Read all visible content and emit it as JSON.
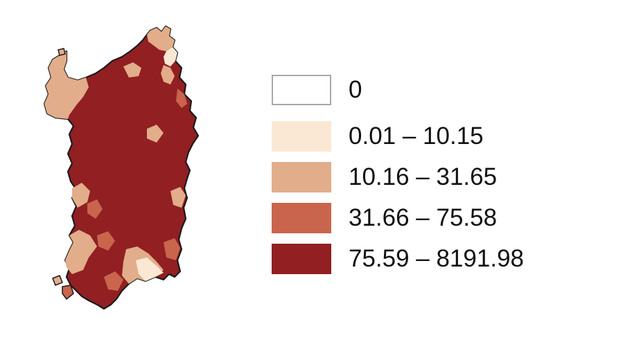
{
  "legend": {
    "items": [
      {
        "label": "0",
        "color": "#ffffff",
        "border": "#a8a8a8"
      },
      {
        "label": "0.01 – 10.15",
        "color": "#fbe8d4"
      },
      {
        "label": "10.16 – 31.65",
        "color": "#e2ad8a"
      },
      {
        "label": "31.66 – 75.58",
        "color": "#c9654c"
      },
      {
        "label": "75.59 – 8191.98",
        "color": "#921f22"
      }
    ]
  },
  "map": {
    "region": "Sardinia",
    "outline_color": "#1a1a1a",
    "dominant_class_color": "#921f22"
  }
}
